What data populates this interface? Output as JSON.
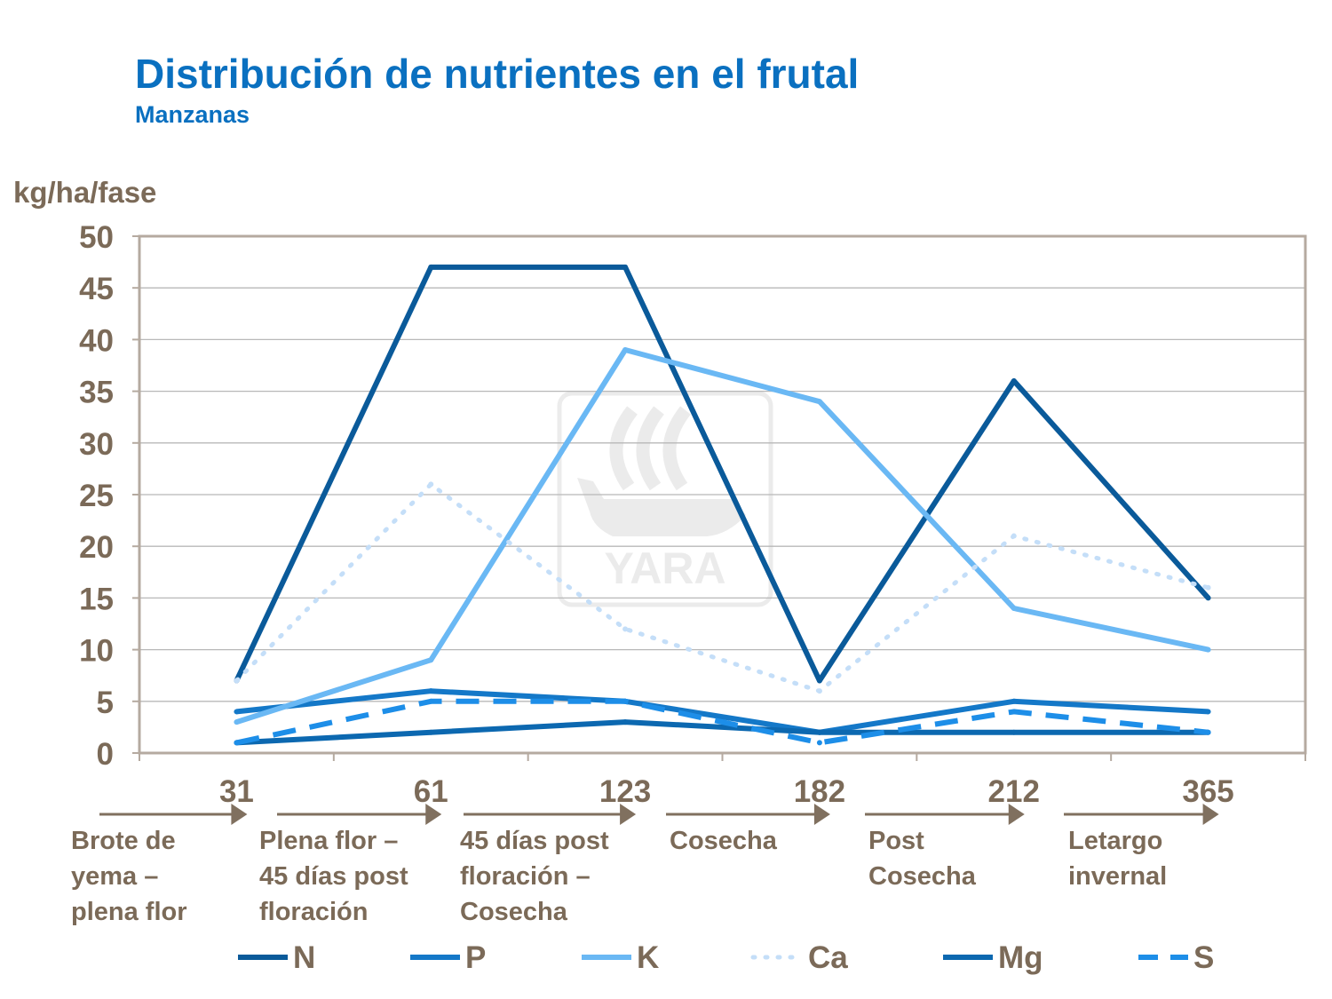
{
  "header": {
    "title": "Distribución de nutrientes en el frutal",
    "subtitle": "Manzanas"
  },
  "watermark": {
    "text": "YARA",
    "icon": "yara-viking-ship-logo"
  },
  "colors": {
    "title": "#0a70c0",
    "axis_text": "#7b6a58",
    "frame": "#b5aaa0",
    "grid": "#b8b8b8",
    "arrow": "#80705f"
  },
  "chart_data": {
    "type": "line",
    "ylabel": "kg/ha/fase",
    "ylim": [
      0,
      50
    ],
    "yticks": [
      "0",
      "5",
      "10",
      "15",
      "20",
      "25",
      "30",
      "35",
      "40",
      "45",
      "50"
    ],
    "categories": [
      "31",
      "61",
      "123",
      "182",
      "212",
      "365"
    ],
    "phases": [
      [
        "Brote de",
        "yema –",
        "plena flor"
      ],
      [
        "Plena flor –",
        "45 días post",
        "floración"
      ],
      [
        "45 días post",
        "floración –",
        "Cosecha"
      ],
      [
        "Cosecha"
      ],
      [
        "Post",
        "Cosecha"
      ],
      [
        "Letargo",
        "invernal"
      ]
    ],
    "grid": true,
    "legend_position": "bottom",
    "series": [
      {
        "name": "N",
        "values": [
          7,
          47,
          47,
          7,
          36,
          15
        ],
        "color": "#0a5a9a",
        "style": "solid"
      },
      {
        "name": "P",
        "values": [
          4,
          6,
          5,
          2,
          5,
          4
        ],
        "color": "#1478c8",
        "style": "solid"
      },
      {
        "name": "K",
        "values": [
          3,
          9,
          39,
          34,
          14,
          10
        ],
        "color": "#6ab8f4",
        "style": "solid"
      },
      {
        "name": "Ca",
        "values": [
          7,
          26,
          12,
          6,
          21,
          16
        ],
        "color": "#c4def8",
        "style": "dotted"
      },
      {
        "name": "Mg",
        "values": [
          1,
          2,
          3,
          2,
          2,
          2
        ],
        "color": "#0c68b0",
        "style": "solid"
      },
      {
        "name": "S",
        "values": [
          1,
          5,
          5,
          1,
          4,
          2
        ],
        "color": "#1d8ee8",
        "style": "dashed"
      }
    ]
  }
}
